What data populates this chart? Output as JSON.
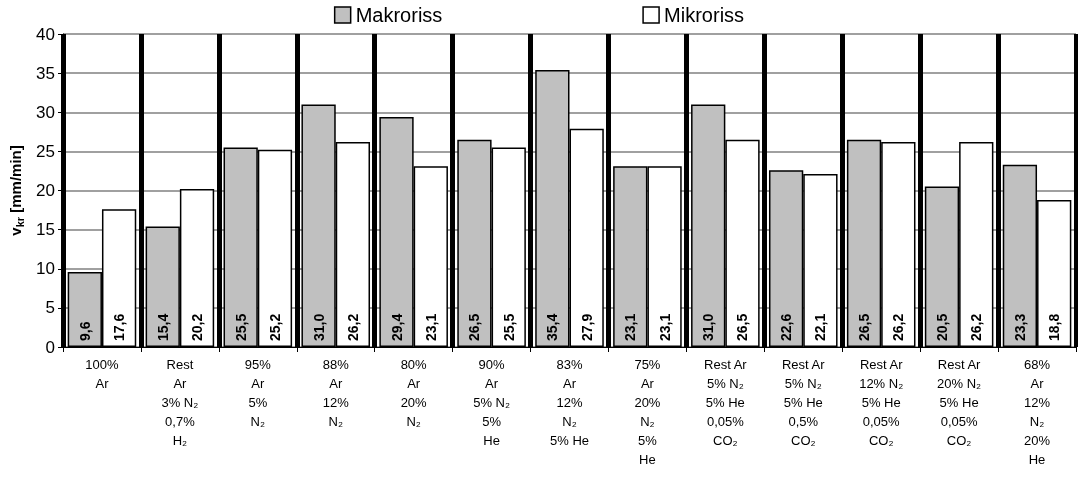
{
  "chart_data": {
    "type": "bar",
    "ylabel": "v$_{kr}$ [mm/min]",
    "categories": [
      "100%\nAr",
      "Rest\nAr\n3% N₂\n0,7%\nH₂",
      "95%\nAr\n5%\nN₂",
      "88%\nAr\n12%\nN₂",
      "80%\nAr\n20%\nN₂",
      "90%\nAr\n5% N₂\n5%\nHe",
      "83%\nAr\n12%\nN₂\n5% He",
      "75%\nAr\n20%\nN₂\n5%\nHe",
      "Rest Ar\n5% N₂\n5% He\n0,05%\nCO₂",
      "Rest Ar\n5% N₂\n5% He\n0,5%\nCO₂",
      "Rest Ar\n12% N₂\n5% He\n0,05%\nCO₂",
      "Rest Ar\n20% N₂\n5% He\n0,05%\nCO₂",
      "68%\nAr\n12%\nN₂\n20%\nHe"
    ],
    "series": [
      {
        "name": "Makroriss",
        "color": "#c0c0c0",
        "values": [
          9.6,
          15.4,
          25.5,
          31.0,
          29.4,
          26.5,
          35.4,
          23.1,
          31.0,
          22.6,
          26.5,
          20.5,
          23.3
        ],
        "value_labels": [
          "9,6",
          "15,4",
          "25,5",
          "31,0",
          "29,4",
          "26,5",
          "35,4",
          "23,1",
          "31,0",
          "22,6",
          "26,5",
          "20,5",
          "23,3"
        ]
      },
      {
        "name": "Mikroriss",
        "color": "#ffffff",
        "values": [
          17.6,
          20.2,
          25.2,
          26.2,
          23.1,
          25.5,
          27.9,
          23.1,
          26.5,
          22.1,
          26.2,
          26.2,
          18.8
        ],
        "value_labels": [
          "17,6",
          "20,2",
          "25,2",
          "26,2",
          "23,1",
          "25,5",
          "27,9",
          "23,1",
          "26,5",
          "22,1",
          "26,2",
          "26,2",
          "18,8"
        ]
      }
    ],
    "ylim": [
      0,
      40
    ],
    "yticks": [
      0,
      5,
      10,
      15,
      20,
      25,
      30,
      35,
      40
    ],
    "grid": true,
    "legend": "top"
  }
}
